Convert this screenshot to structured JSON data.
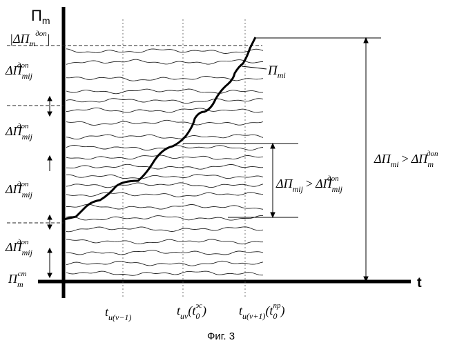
{
  "figure": {
    "caption": "Фиг. 3",
    "axes": {
      "y_label_main": "П",
      "y_label_sub": "m",
      "x_label": "t"
    },
    "left_labels": [
      {
        "main": "|ΔП",
        "sub": "m",
        "sup": "доп",
        "close": "|"
      },
      {
        "main": "ΔП",
        "sub": "mij",
        "sup": "доп"
      },
      {
        "main": "ΔП",
        "sub": "mij",
        "sup": "доп"
      },
      {
        "main": "ΔП",
        "sub": "mij",
        "sup": "доп"
      },
      {
        "main": "ΔП",
        "sub": "mij",
        "sup": "доп"
      },
      {
        "main": "П",
        "sub": "m",
        "sup": "ст"
      }
    ],
    "curve_label": {
      "main": "П",
      "sub": "mi"
    },
    "inequality_inner": {
      "left": "ΔП",
      "left_sub": "mij",
      "op": ">",
      "right": "ΔП",
      "right_sub": "mij",
      "right_sup": "доп"
    },
    "inequality_outer": {
      "left": "ΔП",
      "left_sub": "mi",
      "op": ">",
      "right": "ΔП",
      "right_sub": "m",
      "right_sup": "доп"
    },
    "time_labels": [
      {
        "main": "t",
        "sub": "u(v−1)",
        "tail": ""
      },
      {
        "main": "t",
        "sub": "uv",
        "paren_main": "(t",
        "paren_sub": "0",
        "paren_sup": "эс",
        "tail": ")"
      },
      {
        "main": "t",
        "sub": "u(v+1)",
        "paren_main": "(t",
        "paren_sub": "0",
        "paren_sup": "пр",
        "tail": ")"
      }
    ]
  }
}
